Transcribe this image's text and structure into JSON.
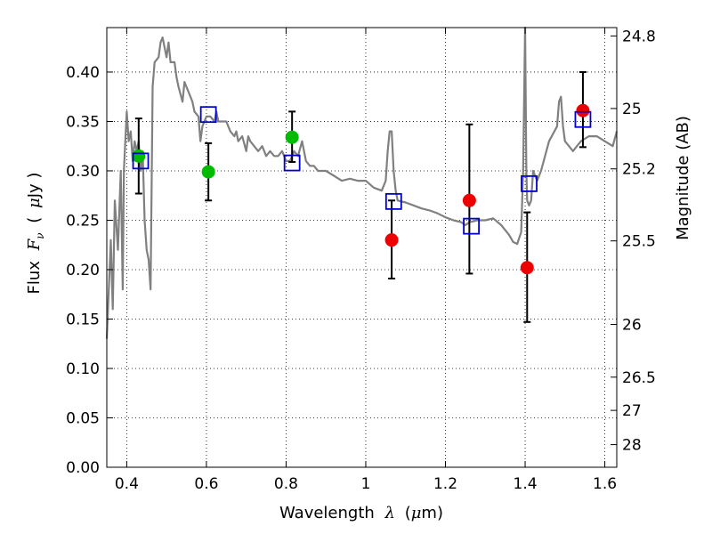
{
  "chart_data": {
    "type": "scatter",
    "xlabel": {
      "pre": "Wavelength",
      "sym": "λ",
      "unit_open": "(",
      "unit_mu": "μ",
      "unit_rest": "m)"
    },
    "ylabel": {
      "pre": "Flux",
      "sym": "F",
      "sub": "ν",
      "unit_open": "(",
      "unit_mu": "μ",
      "unit_rest": "Jy )"
    },
    "y2label": "Magnitude (AB)",
    "xlim": [
      0.35,
      1.63
    ],
    "ylim": [
      0.0,
      0.445
    ],
    "x_ticks": [
      {
        "value": 0.4,
        "label": "0.4"
      },
      {
        "value": 0.6,
        "label": "0.6"
      },
      {
        "value": 0.8,
        "label": "0.8"
      },
      {
        "value": 1.0,
        "label": "1"
      },
      {
        "value": 1.2,
        "label": "1.2"
      },
      {
        "value": 1.4,
        "label": "1.4"
      },
      {
        "value": 1.6,
        "label": "1.6"
      }
    ],
    "y_ticks": [
      {
        "value": 0.0,
        "label": "0.00"
      },
      {
        "value": 0.05,
        "label": "0.05"
      },
      {
        "value": 0.1,
        "label": "0.10"
      },
      {
        "value": 0.15,
        "label": "0.15"
      },
      {
        "value": 0.2,
        "label": "0.20"
      },
      {
        "value": 0.25,
        "label": "0.25"
      },
      {
        "value": 0.3,
        "label": "0.30"
      },
      {
        "value": 0.35,
        "label": "0.35"
      },
      {
        "value": 0.4,
        "label": "0.40"
      }
    ],
    "y2_ticks": [
      {
        "value": 24.8,
        "label": "24.8"
      },
      {
        "value": 25.0,
        "label": "25"
      },
      {
        "value": 25.2,
        "label": "25.2"
      },
      {
        "value": 25.5,
        "label": "25.5"
      },
      {
        "value": 26.0,
        "label": "26"
      },
      {
        "value": 26.5,
        "label": "26.5"
      },
      {
        "value": 27.0,
        "label": "27"
      },
      {
        "value": 28.0,
        "label": "28"
      }
    ],
    "grid": true,
    "colors": {
      "model": "#808080",
      "optical": "#00bb00",
      "nir": "#ee0000",
      "model_phot": "#0000cc",
      "errorbar": "#000000"
    },
    "model_spectrum": [
      [
        0.35,
        0.13
      ],
      [
        0.36,
        0.23
      ],
      [
        0.365,
        0.16
      ],
      [
        0.37,
        0.27
      ],
      [
        0.378,
        0.22
      ],
      [
        0.385,
        0.3
      ],
      [
        0.39,
        0.18
      ],
      [
        0.393,
        0.3
      ],
      [
        0.4,
        0.36
      ],
      [
        0.405,
        0.33
      ],
      [
        0.41,
        0.34
      ],
      [
        0.415,
        0.31
      ],
      [
        0.42,
        0.33
      ],
      [
        0.425,
        0.32
      ],
      [
        0.43,
        0.33
      ],
      [
        0.435,
        0.3
      ],
      [
        0.44,
        0.32
      ],
      [
        0.445,
        0.25
      ],
      [
        0.45,
        0.22
      ],
      [
        0.455,
        0.21
      ],
      [
        0.46,
        0.18
      ],
      [
        0.465,
        0.385
      ],
      [
        0.47,
        0.41
      ],
      [
        0.48,
        0.415
      ],
      [
        0.485,
        0.43
      ],
      [
        0.49,
        0.435
      ],
      [
        0.5,
        0.415
      ],
      [
        0.505,
        0.43
      ],
      [
        0.51,
        0.41
      ],
      [
        0.52,
        0.41
      ],
      [
        0.525,
        0.395
      ],
      [
        0.53,
        0.385
      ],
      [
        0.54,
        0.37
      ],
      [
        0.545,
        0.39
      ],
      [
        0.55,
        0.385
      ],
      [
        0.56,
        0.375
      ],
      [
        0.565,
        0.37
      ],
      [
        0.57,
        0.36
      ],
      [
        0.58,
        0.355
      ],
      [
        0.585,
        0.33
      ],
      [
        0.59,
        0.345
      ],
      [
        0.6,
        0.355
      ],
      [
        0.61,
        0.355
      ],
      [
        0.62,
        0.35
      ],
      [
        0.625,
        0.36
      ],
      [
        0.63,
        0.35
      ],
      [
        0.64,
        0.35
      ],
      [
        0.65,
        0.35
      ],
      [
        0.66,
        0.34
      ],
      [
        0.67,
        0.335
      ],
      [
        0.675,
        0.34
      ],
      [
        0.68,
        0.33
      ],
      [
        0.69,
        0.335
      ],
      [
        0.7,
        0.32
      ],
      [
        0.705,
        0.335
      ],
      [
        0.71,
        0.33
      ],
      [
        0.72,
        0.325
      ],
      [
        0.73,
        0.32
      ],
      [
        0.74,
        0.325
      ],
      [
        0.75,
        0.315
      ],
      [
        0.76,
        0.32
      ],
      [
        0.77,
        0.315
      ],
      [
        0.78,
        0.315
      ],
      [
        0.79,
        0.32
      ],
      [
        0.8,
        0.31
      ],
      [
        0.81,
        0.31
      ],
      [
        0.82,
        0.32
      ],
      [
        0.83,
        0.315
      ],
      [
        0.84,
        0.33
      ],
      [
        0.85,
        0.31
      ],
      [
        0.86,
        0.305
      ],
      [
        0.87,
        0.305
      ],
      [
        0.88,
        0.3
      ],
      [
        0.9,
        0.3
      ],
      [
        0.92,
        0.295
      ],
      [
        0.94,
        0.29
      ],
      [
        0.96,
        0.292
      ],
      [
        0.98,
        0.29
      ],
      [
        1.0,
        0.29
      ],
      [
        1.02,
        0.283
      ],
      [
        1.04,
        0.28
      ],
      [
        1.05,
        0.29
      ],
      [
        1.055,
        0.32
      ],
      [
        1.06,
        0.34
      ],
      [
        1.065,
        0.34
      ],
      [
        1.07,
        0.3
      ],
      [
        1.075,
        0.28
      ],
      [
        1.08,
        0.27
      ],
      [
        1.1,
        0.268
      ],
      [
        1.12,
        0.265
      ],
      [
        1.14,
        0.262
      ],
      [
        1.16,
        0.26
      ],
      [
        1.18,
        0.257
      ],
      [
        1.2,
        0.253
      ],
      [
        1.22,
        0.25
      ],
      [
        1.24,
        0.248
      ],
      [
        1.25,
        0.245
      ],
      [
        1.26,
        0.248
      ],
      [
        1.28,
        0.25
      ],
      [
        1.3,
        0.25
      ],
      [
        1.32,
        0.252
      ],
      [
        1.34,
        0.245
      ],
      [
        1.36,
        0.235
      ],
      [
        1.37,
        0.228
      ],
      [
        1.38,
        0.226
      ],
      [
        1.39,
        0.238
      ],
      [
        1.395,
        0.3
      ],
      [
        1.4,
        0.445
      ],
      [
        1.403,
        0.3
      ],
      [
        1.405,
        0.27
      ],
      [
        1.41,
        0.265
      ],
      [
        1.415,
        0.27
      ],
      [
        1.42,
        0.3
      ],
      [
        1.43,
        0.29
      ],
      [
        1.44,
        0.3
      ],
      [
        1.46,
        0.33
      ],
      [
        1.48,
        0.345
      ],
      [
        1.485,
        0.37
      ],
      [
        1.49,
        0.375
      ],
      [
        1.495,
        0.345
      ],
      [
        1.5,
        0.33
      ],
      [
        1.51,
        0.325
      ],
      [
        1.52,
        0.32
      ],
      [
        1.53,
        0.325
      ],
      [
        1.54,
        0.33
      ],
      [
        1.56,
        0.335
      ],
      [
        1.58,
        0.335
      ],
      [
        1.6,
        0.33
      ],
      [
        1.62,
        0.325
      ],
      [
        1.63,
        0.34
      ]
    ],
    "optical_points": [
      {
        "x": 0.43,
        "y": 0.315,
        "err_lo": 0.277,
        "err_hi": 0.353
      },
      {
        "x": 0.605,
        "y": 0.299,
        "err_lo": 0.27,
        "err_hi": 0.328
      },
      {
        "x": 0.815,
        "y": 0.334,
        "err_lo": 0.309,
        "err_hi": 0.36
      }
    ],
    "nir_points": [
      {
        "x": 1.065,
        "y": 0.23,
        "err_lo": 0.191,
        "err_hi": 0.27
      },
      {
        "x": 1.26,
        "y": 0.27,
        "err_lo": 0.196,
        "err_hi": 0.347
      },
      {
        "x": 1.405,
        "y": 0.202,
        "err_lo": 0.147,
        "err_hi": 0.258
      },
      {
        "x": 1.545,
        "y": 0.361,
        "err_lo": 0.324,
        "err_hi": 0.4
      }
    ],
    "model_photometry": [
      {
        "x": 0.435,
        "y": 0.31
      },
      {
        "x": 0.605,
        "y": 0.357
      },
      {
        "x": 0.815,
        "y": 0.308
      },
      {
        "x": 1.07,
        "y": 0.269
      },
      {
        "x": 1.265,
        "y": 0.244
      },
      {
        "x": 1.41,
        "y": 0.287
      },
      {
        "x": 1.545,
        "y": 0.352
      }
    ]
  }
}
